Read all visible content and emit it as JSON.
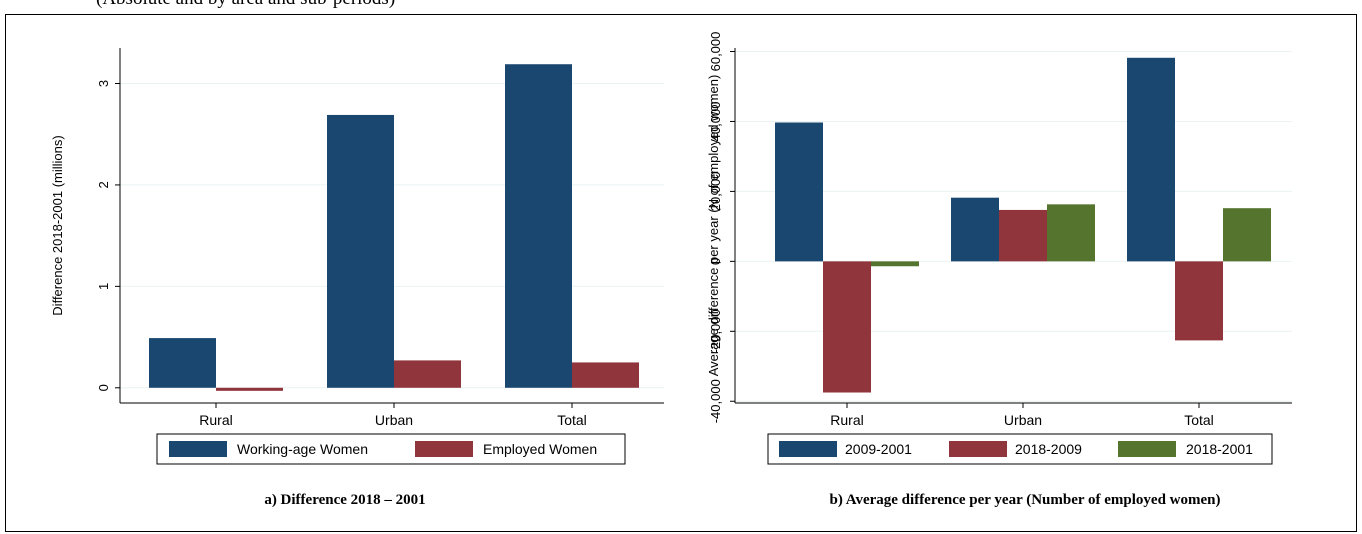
{
  "header": {
    "clipped_text": "(Absolute and by area and sub-periods)"
  },
  "captions": {
    "a": "a)  Difference 2018 – 2001",
    "b": "b) Average difference per year (Number of employed women)"
  },
  "colors": {
    "navy": "#1a476f",
    "maroon": "#90353b",
    "green": "#55752f",
    "grid": "#eaf2f3"
  },
  "chart_data": [
    {
      "type": "bar",
      "categories": [
        "Rural",
        "Urban",
        "Total"
      ],
      "ylabel": "Difference 2018-2001 (millions)",
      "ylim": [
        -0.15,
        3.35
      ],
      "yticks": [
        0,
        1,
        2,
        3
      ],
      "ytick_labels": [
        "0",
        "1",
        "2",
        "3"
      ],
      "grid": true,
      "legend_position": "bottom",
      "series": [
        {
          "name": "Working-age Women",
          "values": [
            0.49,
            2.69,
            3.19
          ]
        },
        {
          "name": "Employed Women",
          "values": [
            -0.03,
            0.27,
            0.25
          ]
        }
      ]
    },
    {
      "type": "bar",
      "categories": [
        "Rural",
        "Urban",
        "Total"
      ],
      "ylabel": "Average difference per year (N of employed women)",
      "ylim": [
        -40500,
        61000
      ],
      "yticks": [
        -40000,
        -20000,
        0,
        20000,
        40000,
        60000
      ],
      "ytick_labels": [
        "-40,000",
        "-20,000",
        "0",
        "20,000",
        "40,000",
        "60,000"
      ],
      "grid": true,
      "legend_position": "bottom",
      "series": [
        {
          "name": "2009-2001",
          "values": [
            39700,
            18200,
            58200
          ]
        },
        {
          "name": "2018-2009",
          "values": [
            -37500,
            14700,
            -22600
          ]
        },
        {
          "name": "2018-2001",
          "values": [
            -1400,
            16300,
            15200
          ]
        }
      ]
    }
  ]
}
